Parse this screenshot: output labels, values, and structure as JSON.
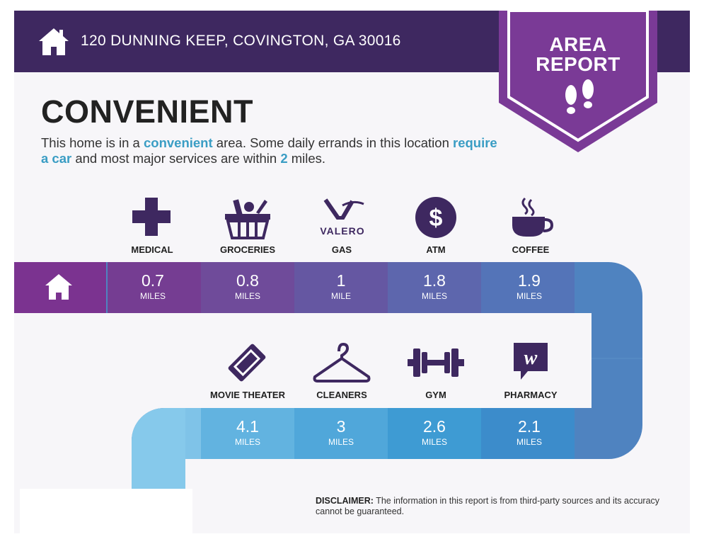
{
  "header": {
    "address": "120 DUNNING KEEP, COVINGTON, GA 30016",
    "icon": "home-icon"
  },
  "badge": {
    "line1": "AREA",
    "line2": "REPORT",
    "icon": "footprints-icon"
  },
  "headline": "CONVENIENT",
  "intro": {
    "p1": "This home is in a ",
    "k1": "convenient",
    "p2": " area. Some daily errands in this location ",
    "k2": "require a car",
    "p3": " and most major services are within ",
    "k3": "2",
    "p4": " miles."
  },
  "row1": [
    {
      "label": "MEDICAL",
      "value": "0.7",
      "unit": "MILES",
      "icon": "medical-cross-icon"
    },
    {
      "label": "GROCERIES",
      "value": "0.8",
      "unit": "MILES",
      "icon": "grocery-basket-icon"
    },
    {
      "label": "GAS",
      "value": "1",
      "unit": "MILE",
      "icon": "valero-logo-icon",
      "brand": "VALERO"
    },
    {
      "label": "ATM",
      "value": "1.8",
      "unit": "MILES",
      "icon": "dollar-icon"
    },
    {
      "label": "COFFEE",
      "value": "1.9",
      "unit": "MILES",
      "icon": "coffee-cup-icon"
    }
  ],
  "row2": [
    {
      "label": "MOVIE THEATER",
      "value": "4.1",
      "unit": "MILES",
      "icon": "ticket-icon"
    },
    {
      "label": "CLEANERS",
      "value": "3",
      "unit": "MILES",
      "icon": "hanger-icon"
    },
    {
      "label": "GYM",
      "value": "2.6",
      "unit": "MILES",
      "icon": "dumbbell-icon"
    },
    {
      "label": "PHARMACY",
      "value": "2.1",
      "unit": "MILES",
      "icon": "walgreens-logo-icon"
    }
  ],
  "disclaimer": {
    "label": "DISCLAIMER:",
    "text": " The information in this report is from third-party sources and its accuracy cannot be guaranteed."
  },
  "colors": {
    "header": "#3e2860",
    "badge": "#7a3a96",
    "accent": "#3a9dc4",
    "icon": "#3e2860"
  }
}
